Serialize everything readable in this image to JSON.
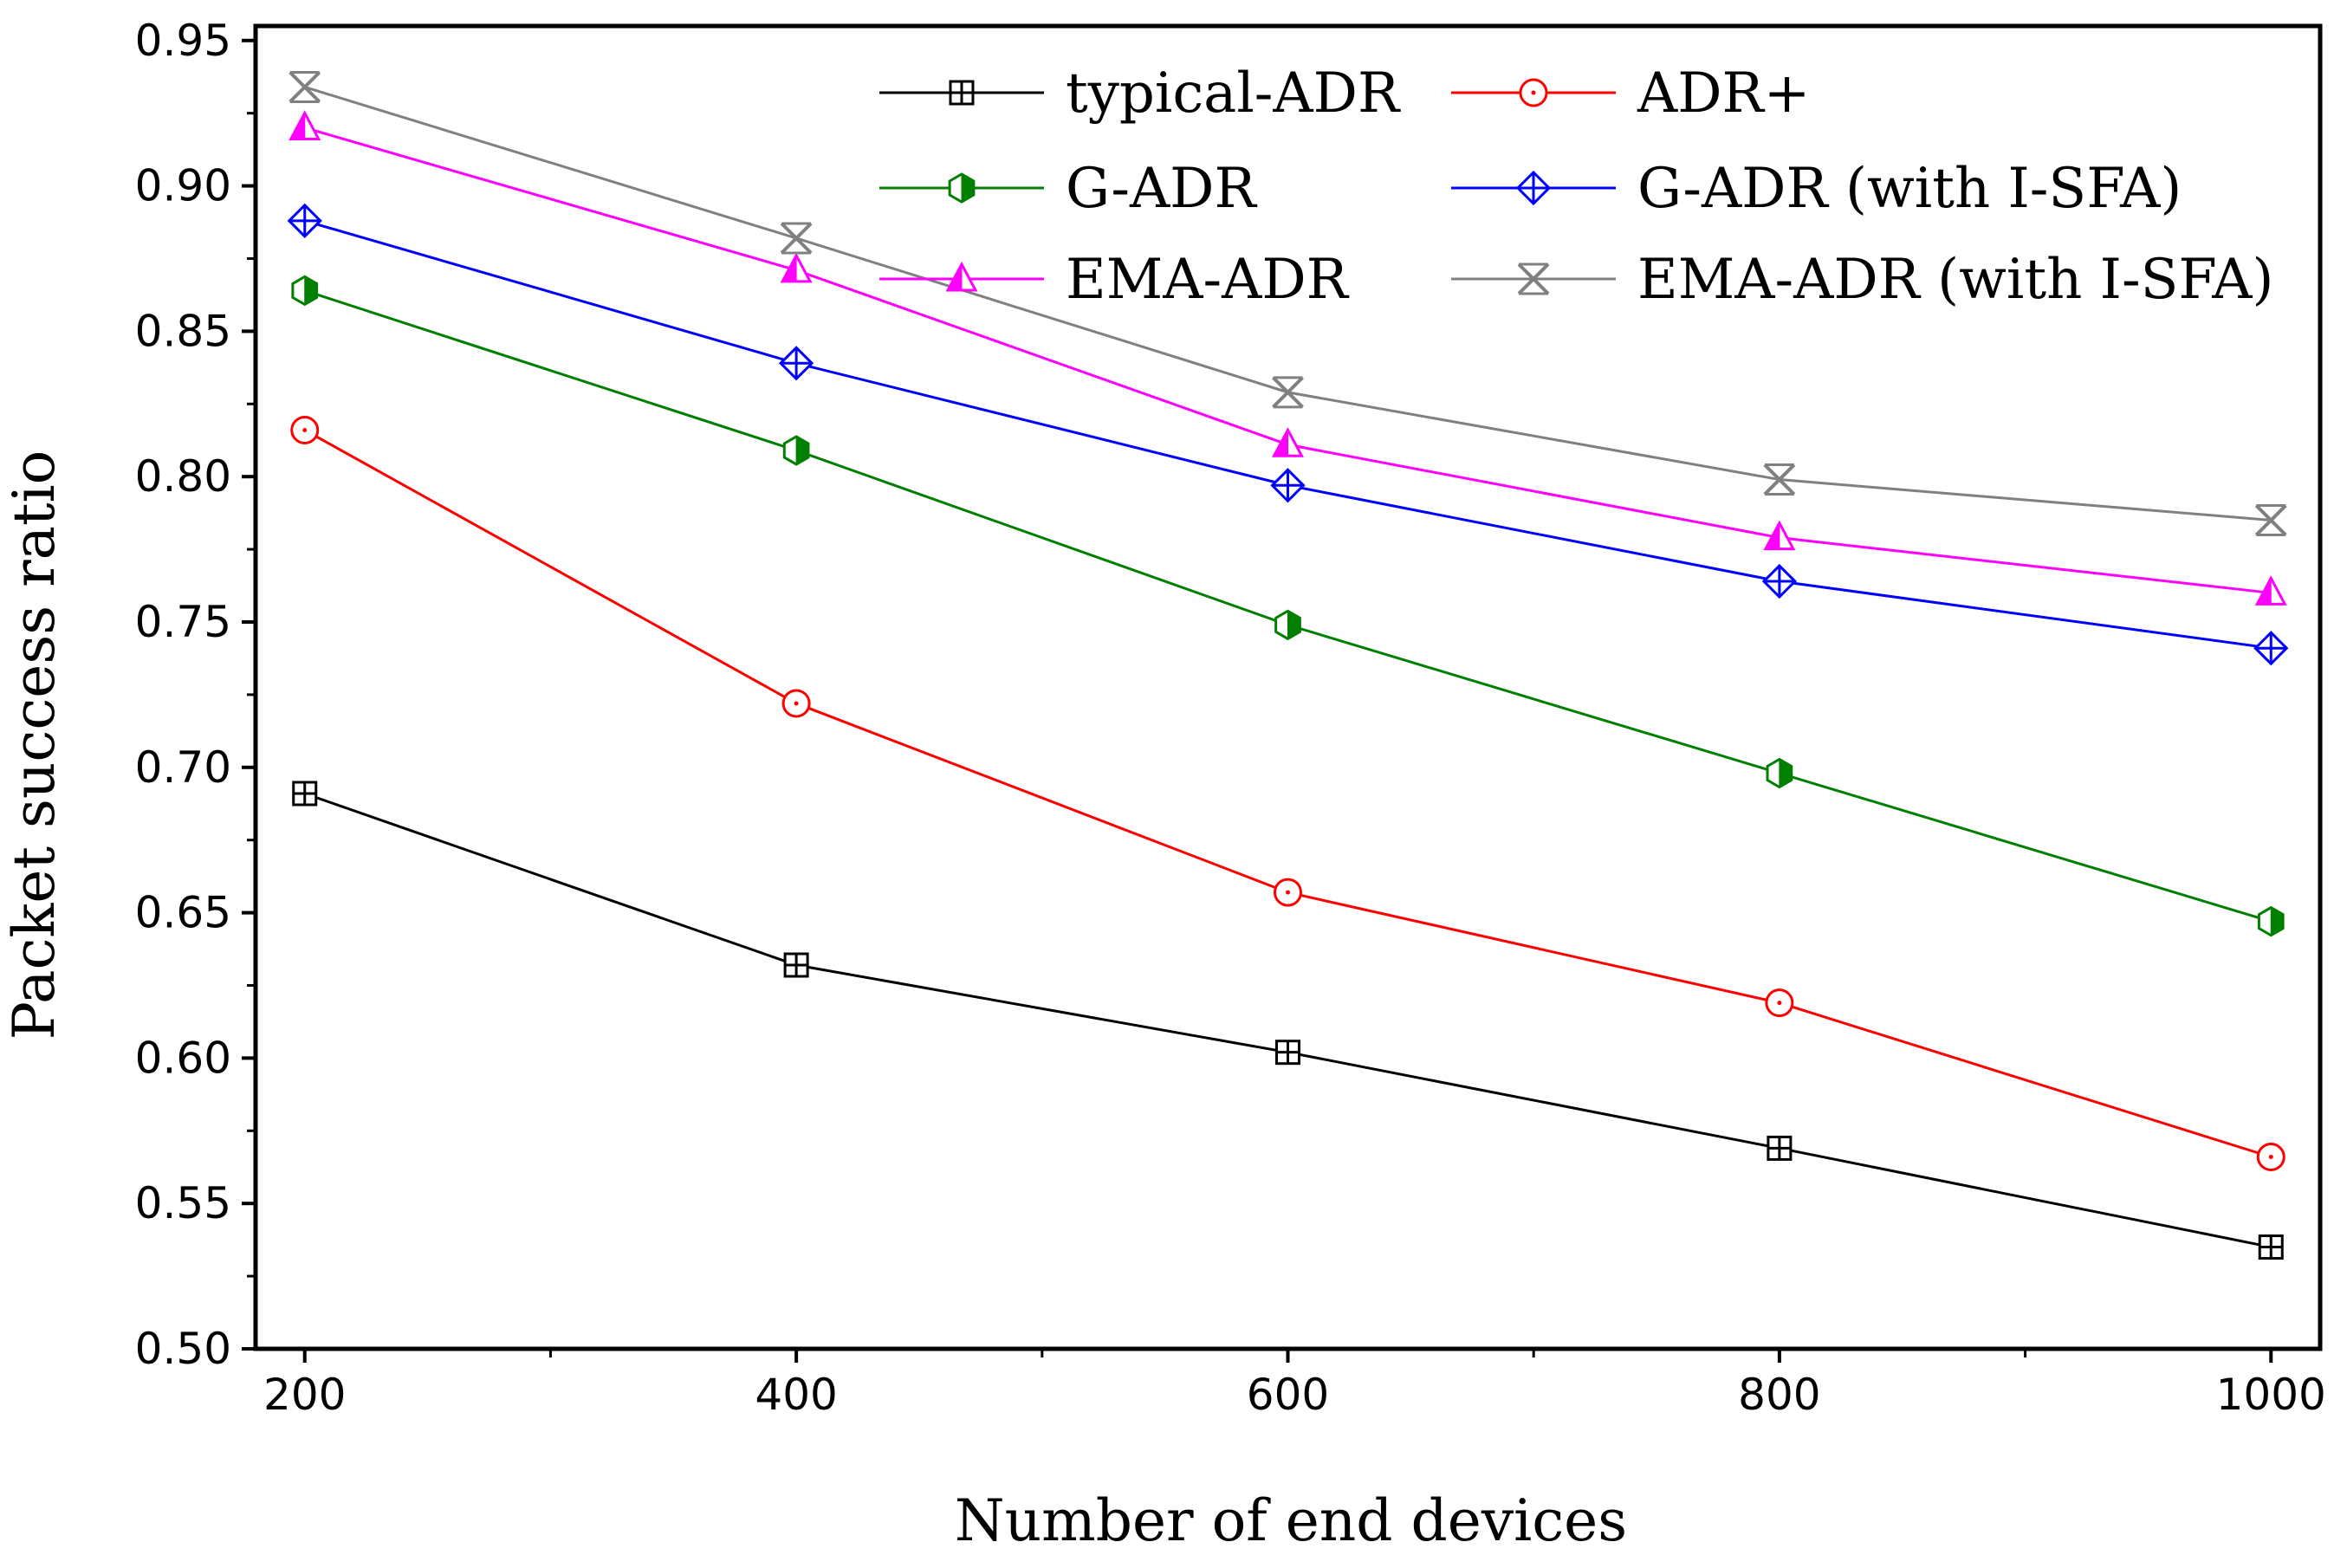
{
  "chart_data": {
    "type": "line",
    "title": "",
    "xlabel": "Number of end devices",
    "ylabel": "Packet success ratio",
    "x": [
      200,
      400,
      600,
      800,
      1000
    ],
    "xlim": [
      180,
      1020
    ],
    "ylim": [
      0.5,
      0.955
    ],
    "x_ticks": [
      "200",
      "400",
      "600",
      "800",
      "1000"
    ],
    "y_ticks": [
      "0.50",
      "0.55",
      "0.60",
      "0.65",
      "0.70",
      "0.75",
      "0.80",
      "0.85",
      "0.90",
      "0.95"
    ],
    "grid": false,
    "legend_position": "top-right",
    "series": [
      {
        "name": "typical-ADR",
        "color": "#000000",
        "marker": "square-cross",
        "values": [
          0.691,
          0.632,
          0.602,
          0.569,
          0.535
        ]
      },
      {
        "name": "ADR+",
        "color": "#ff0000",
        "marker": "circle-dot",
        "values": [
          0.816,
          0.722,
          0.657,
          0.619,
          0.566
        ]
      },
      {
        "name": "G-ADR",
        "color": "#007f00",
        "marker": "hexagon-half",
        "values": [
          0.864,
          0.809,
          0.749,
          0.698,
          0.647
        ]
      },
      {
        "name": "G-ADR (with I-SFA)",
        "color": "#0000ff",
        "marker": "diamond-cross",
        "values": [
          0.888,
          0.839,
          0.797,
          0.764,
          0.741
        ]
      },
      {
        "name": "EMA-ADR",
        "color": "#ff00ff",
        "marker": "triangle-half",
        "values": [
          0.92,
          0.871,
          0.811,
          0.779,
          0.76
        ]
      },
      {
        "name": "EMA-ADR (with I-SFA)",
        "color": "#808080",
        "marker": "star-x",
        "values": [
          0.934,
          0.882,
          0.829,
          0.799,
          0.785
        ]
      }
    ]
  }
}
